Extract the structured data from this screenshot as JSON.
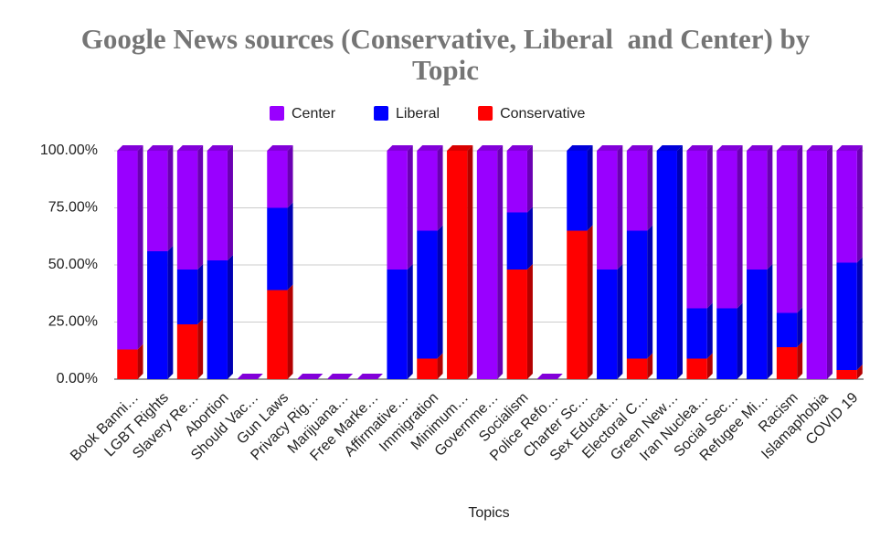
{
  "chart_data": {
    "type": "stacked_bar",
    "title": "Google News sources (Conservative, Liberal  and Center) by Topic",
    "x_label": "Topics",
    "categories": [
      "Book Banni…",
      "LGBT Rights",
      "Slavery Re…",
      "Abortion",
      "Should Vac…",
      "Gun Laws",
      "Privacy Rig…",
      "Marijuana…",
      "Free Marke…",
      "Affirmative…",
      "Immigration",
      "Minimum…",
      "Governme…",
      "Socialism",
      "Police Refo…",
      "Charter Sc…",
      "Sex Educat…",
      "Electoral C…",
      "Green New…",
      "Iran Nuclea…",
      "Social Sec…",
      "Refugee Mi…",
      "Racism",
      "Islamaphobia",
      "COVID 19"
    ],
    "series": [
      {
        "name": "Center",
        "color": "#9900ff",
        "values": [
          87,
          44,
          52,
          48,
          0,
          25,
          0,
          0,
          0,
          52,
          35,
          0,
          100,
          27,
          0,
          0,
          52,
          35,
          0,
          69,
          69,
          52,
          71,
          100,
          49
        ]
      },
      {
        "name": "Liberal",
        "color": "#0000ff",
        "values": [
          0,
          56,
          24,
          52,
          0,
          36,
          0,
          0,
          0,
          48,
          56,
          0,
          0,
          25,
          0,
          35,
          48,
          56,
          100,
          22,
          31,
          48,
          15,
          0,
          47
        ]
      },
      {
        "name": "Conservative",
        "color": "#ff0000",
        "values": [
          13,
          0,
          24,
          0,
          0,
          39,
          0,
          0,
          0,
          0,
          9,
          100,
          0,
          48,
          0,
          65,
          0,
          9,
          0,
          9,
          0,
          0,
          14,
          0,
          4
        ]
      }
    ],
    "ylim": [
      0,
      100
    ],
    "yticks": [
      {
        "value": 0,
        "label": "0.00%"
      },
      {
        "value": 25,
        "label": "25.00%"
      },
      {
        "value": 50,
        "label": "50.00%"
      },
      {
        "value": 75,
        "label": "75.00%"
      },
      {
        "value": 100,
        "label": "100.00%"
      }
    ],
    "grid": true,
    "legend": "top"
  }
}
